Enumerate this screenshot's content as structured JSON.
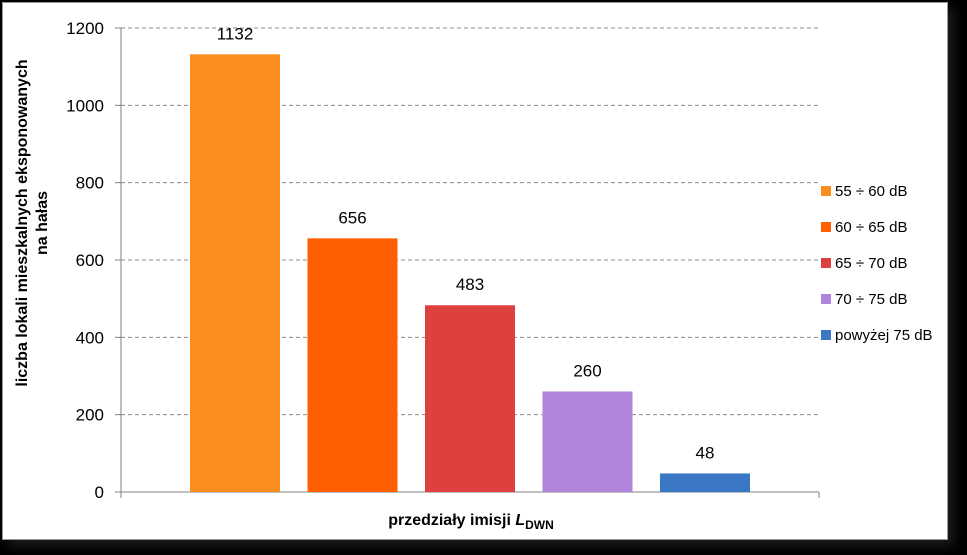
{
  "chart_data": {
    "type": "bar",
    "categories": [
      "55 ÷ 60 dB",
      "60 ÷ 65 dB",
      "65 ÷ 70 dB",
      "70 ÷ 75 dB",
      "powyżej 75 dB"
    ],
    "values": [
      1132,
      656,
      483,
      260,
      48
    ],
    "colors": [
      "#f98e1f",
      "#ff5f00",
      "#de4040",
      "#b184dc",
      "#3a78c6"
    ],
    "data_labels": [
      "1132",
      "656",
      "483",
      "260",
      "48"
    ],
    "ylabel_line1": "liczba lokali mieszkalnych eksponowanych",
    "ylabel_line2": "na hałas",
    "xlabel_main": "przedziały imisji ",
    "xlabel_var": "L",
    "xlabel_sub": "DWN",
    "ylim": [
      0,
      1200
    ],
    "yticks": [
      0,
      200,
      400,
      600,
      800,
      1000,
      1200
    ],
    "ytick_labels": [
      "0",
      "200",
      "400",
      "600",
      "800",
      "1000",
      "1200"
    ],
    "grid": true,
    "legend_position": "right",
    "legend": [
      "55 ÷ 60 dB",
      "60 ÷ 65 dB",
      "65 ÷ 70 dB",
      "70 ÷ 75 dB",
      "powyżej 75 dB"
    ]
  }
}
